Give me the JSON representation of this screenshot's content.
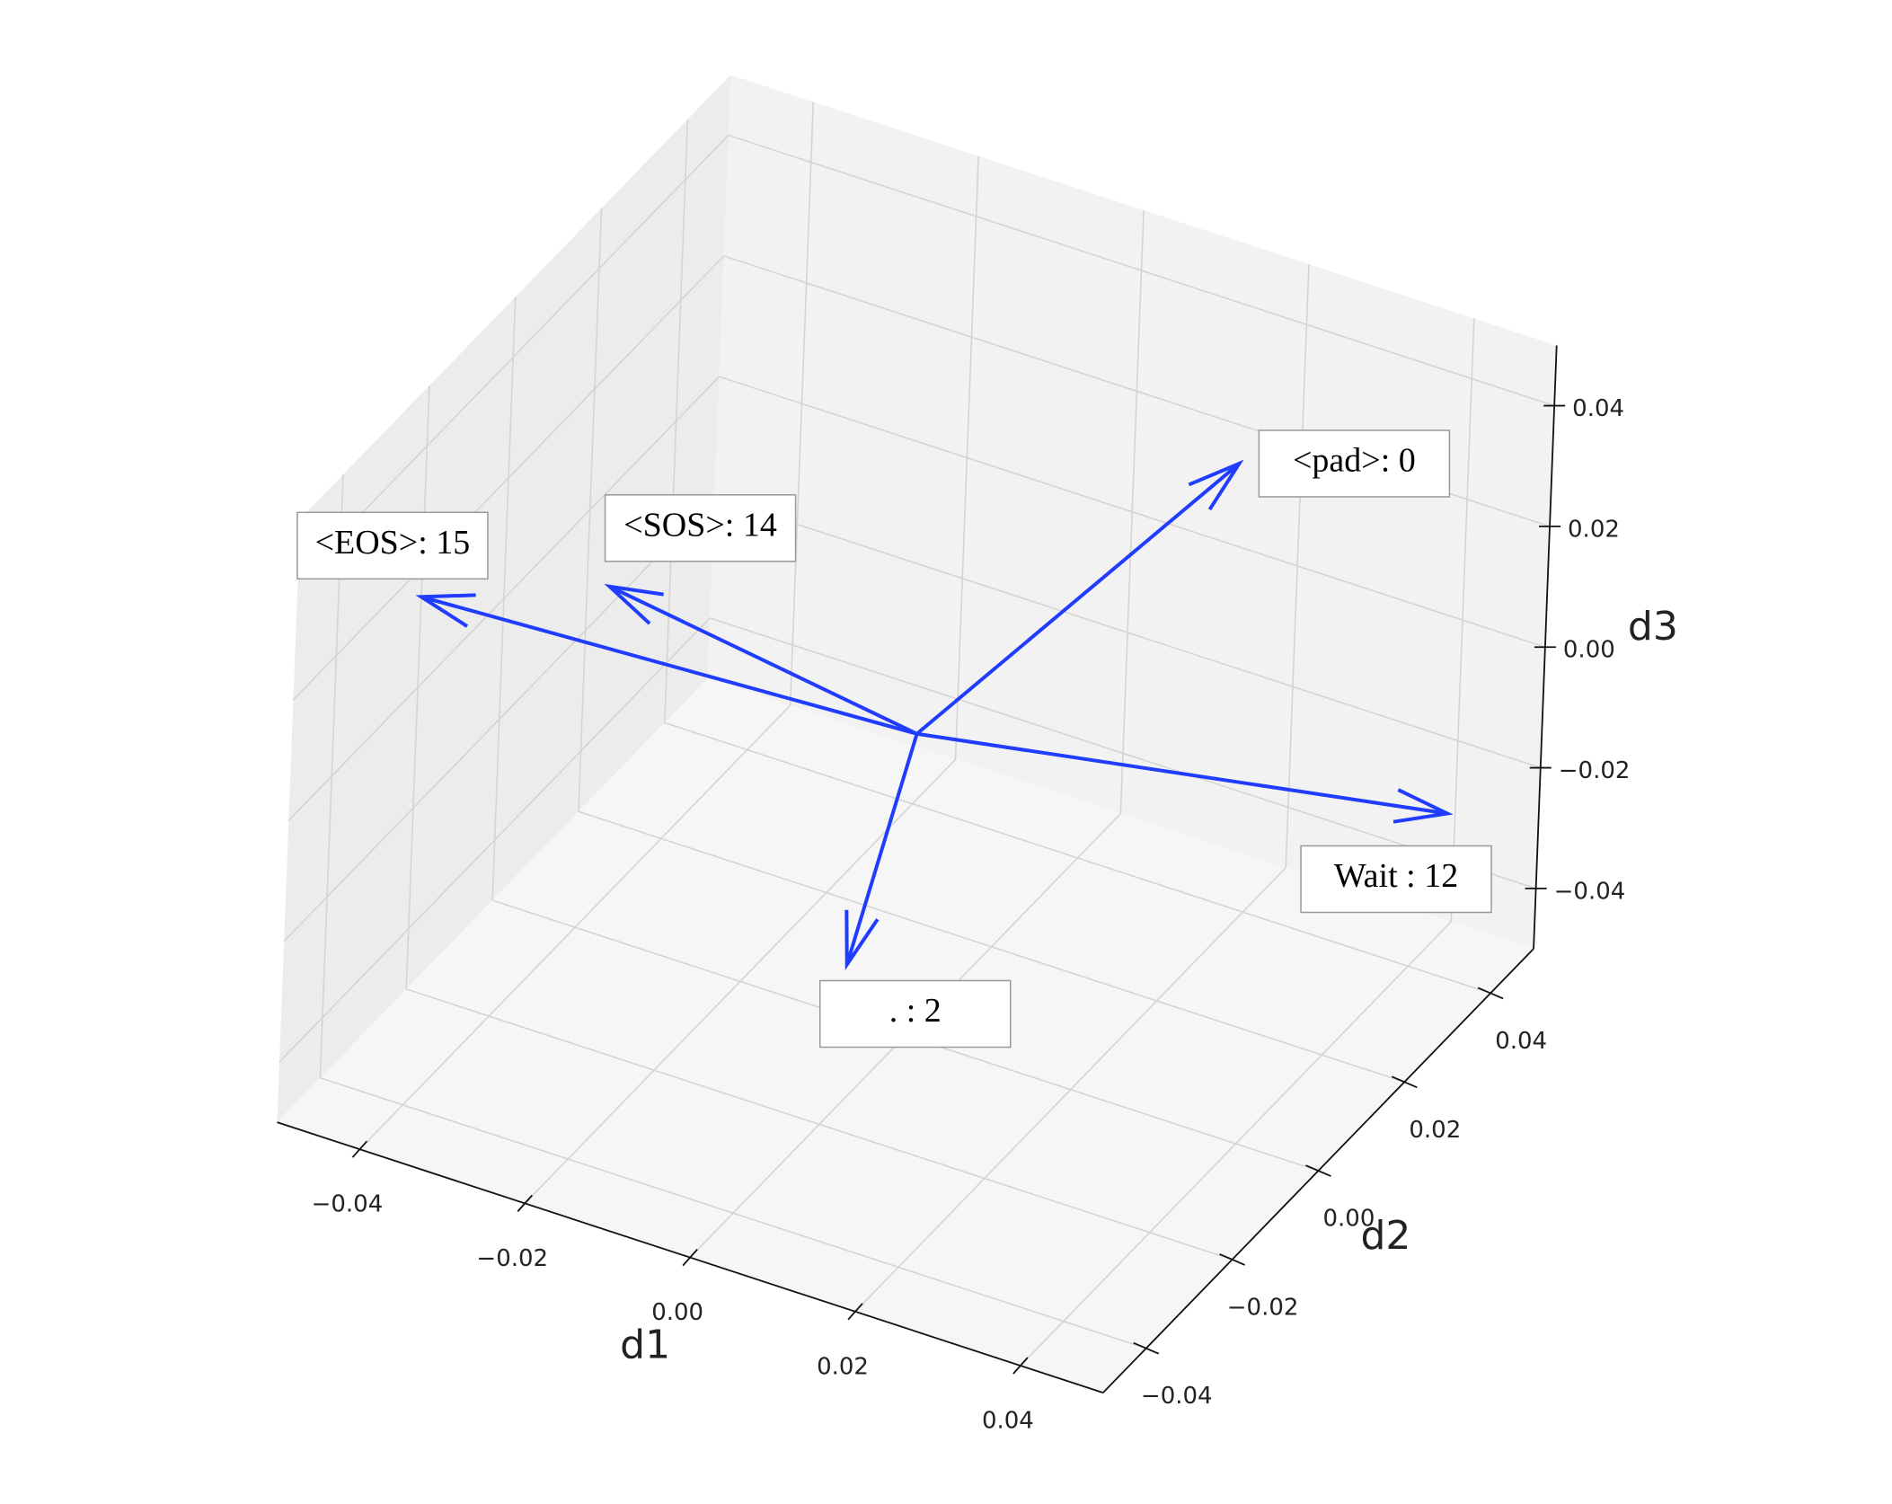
{
  "chart_data": {
    "type": "quiver",
    "labels": [
      "<pad>: 0",
      "<EOS>: 15",
      "<SOS>: 14",
      "Wait : 12",
      ". : 2"
    ],
    "u": [
      0.02,
      -0.05,
      -0.03,
      0.045,
      0.01
    ],
    "v": [
      0.035,
      -0.02,
      -0.015,
      0.038,
      -0.035
    ],
    "w": [
      0.028,
      0.015,
      0.022,
      -0.021,
      -0.008
    ],
    "color": "#1f3cff",
    "xlabel": "d1",
    "ylabel": "d2",
    "zlabel": "d3",
    "xlim": [
      -0.05,
      0.05
    ],
    "ylim": [
      -0.05,
      0.05
    ],
    "zlim": [
      -0.05,
      0.05
    ],
    "xticks": [
      {
        "value": -0.04,
        "label": "−0.04"
      },
      {
        "value": -0.02,
        "label": "−0.02"
      },
      {
        "value": 0,
        "label": "0.00"
      },
      0.02,
      0.04
    ],
    "yticks": [
      {
        "value": -0.04,
        "label": "−0.04"
      },
      {
        "value": -0.02,
        "label": "−0.02"
      },
      {
        "value": 0,
        "label": "0.00"
      },
      0.02,
      0.04
    ],
    "zticks": [
      {
        "value": -0.04,
        "label": "−0.04"
      },
      {
        "value": -0.02,
        "label": "−0.02"
      },
      {
        "value": 0,
        "label": "0.00"
      },
      0.02,
      0.04
    ],
    "grid": true
  }
}
